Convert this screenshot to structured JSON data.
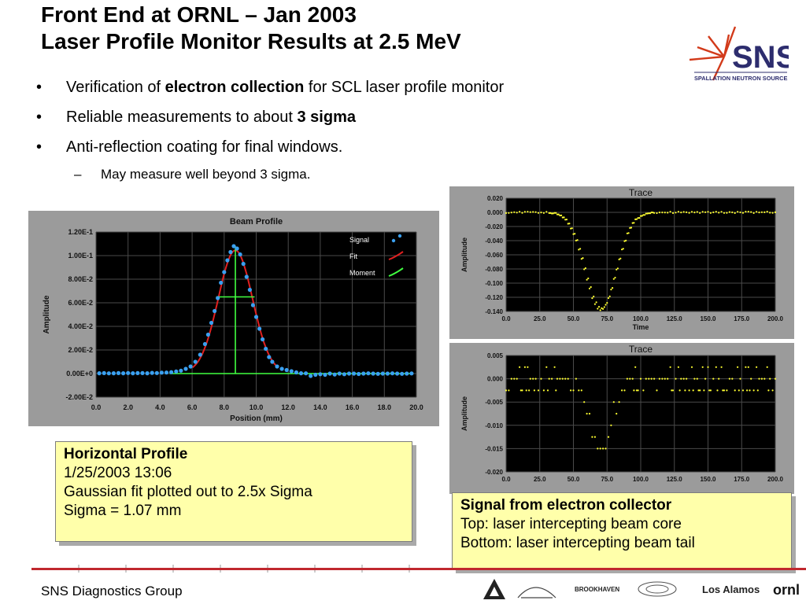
{
  "slide": {
    "title_line1": "Front End at ORNL – Jan 2003",
    "title_line2": "Laser Profile Monitor Results at 2.5 MeV",
    "bullets": [
      {
        "pre": "Verification of ",
        "bold": "electron collection",
        "post": " for SCL laser profile monitor"
      },
      {
        "pre": "Reliable measurements to about ",
        "bold": "3 sigma",
        "post": ""
      },
      {
        "pre": "Anti-reflection coating for final windows.",
        "bold": "",
        "post": ""
      }
    ],
    "sub_bullet_marker": "–",
    "sub_bullet": "May measure well beyond 3 sigma.",
    "bullet_marker": "•",
    "logo": {
      "letters": "SNS",
      "caption": "SPALLATION NEUTRON SOURCE"
    },
    "callout_left": {
      "head": "Horizontal Profile",
      "lines": [
        "1/25/2003 13:06",
        "Gaussian fit plotted out to 2.5x Sigma",
        "Sigma = 1.07 mm"
      ]
    },
    "callout_right": {
      "head": "Signal from electron collector",
      "lines": [
        "Top: laser intercepting beam core",
        "Bottom: laser intercepting beam tail"
      ]
    },
    "footer": "SNS Diagnostics Group",
    "sponsors": [
      "BROOKHAVEN",
      "Los Alamos",
      "ornl"
    ],
    "colors": {
      "accent_red": "#c0282e",
      "callout_fill": "#ffffaa",
      "plot_bg": "#000000",
      "signal": "#3aa0f0",
      "fit": "#e02020",
      "moment": "#40ff40",
      "trace_points": "#ffff30"
    }
  },
  "chart_data": [
    {
      "type": "scatter",
      "title": "Beam Profile",
      "xlabel": "Position (mm)",
      "ylabel": "Amplitude",
      "xlim": [
        0.0,
        20.0
      ],
      "ylim": [
        -0.02,
        0.12
      ],
      "xticks": [
        "0.0",
        "2.0",
        "4.0",
        "6.0",
        "8.0",
        "10.0",
        "12.0",
        "14.0",
        "16.0",
        "18.0",
        "20.0"
      ],
      "yticks": [
        "1.20E-1",
        "1.00E-1",
        "8.00E-2",
        "6.00E-2",
        "4.00E-2",
        "2.00E-2",
        "0.00E+0",
        "-2.00E-2"
      ],
      "legend": [
        "Signal",
        "Fit",
        "Moment"
      ],
      "legend_position": "top-right",
      "grid": true,
      "gaussian": {
        "center": 8.7,
        "sigma": 1.07,
        "amplitude": 0.104,
        "offset": 0.0005
      },
      "moment_crosshair": {
        "x": 8.7,
        "y": 0.065,
        "half_width": 1.2
      },
      "signal": {
        "x": [
          0.2,
          0.5,
          0.8,
          1.1,
          1.4,
          1.7,
          2.0,
          2.3,
          2.6,
          2.9,
          3.2,
          3.5,
          3.8,
          4.1,
          4.4,
          4.7,
          5.0,
          5.3,
          5.6,
          5.9,
          6.2,
          6.5,
          6.8,
          7.0,
          7.2,
          7.4,
          7.6,
          7.8,
          8.0,
          8.2,
          8.4,
          8.6,
          8.8,
          9.0,
          9.2,
          9.4,
          9.6,
          9.8,
          10.0,
          10.2,
          10.4,
          10.6,
          10.8,
          11.0,
          11.3,
          11.6,
          11.9,
          12.2,
          12.5,
          12.8,
          13.1,
          13.4,
          13.7,
          14.0,
          14.3,
          14.6,
          14.9,
          15.2,
          15.5,
          15.8,
          16.1,
          16.4,
          16.7,
          17.0,
          17.3,
          17.6,
          17.9,
          18.2,
          18.5,
          18.8,
          19.1,
          19.4,
          19.7
        ],
        "y": [
          0.0003,
          0.0004,
          0.0002,
          0.0003,
          0.0004,
          0.0003,
          0.0005,
          0.0003,
          0.0004,
          0.0004,
          0.0003,
          0.0006,
          0.0005,
          0.0008,
          0.0009,
          0.0012,
          0.0018,
          0.0025,
          0.004,
          0.006,
          0.01,
          0.016,
          0.025,
          0.033,
          0.043,
          0.053,
          0.064,
          0.077,
          0.086,
          0.096,
          0.103,
          0.108,
          0.106,
          0.101,
          0.093,
          0.082,
          0.071,
          0.058,
          0.048,
          0.038,
          0.029,
          0.021,
          0.014,
          0.01,
          0.006,
          0.004,
          0.003,
          0.002,
          0.001,
          0.0003,
          0.0002,
          -0.002,
          -0.001,
          -0.0005,
          -0.001,
          0.0,
          -0.0008,
          0.0,
          -0.0005,
          0.0,
          0.0,
          -0.0003,
          0.0,
          0.0002,
          0.0,
          -0.0002,
          0.0,
          0.0,
          0.0002,
          0.0,
          -0.0002,
          0.0,
          0.0001
        ]
      }
    },
    {
      "type": "scatter",
      "title": "Trace",
      "xlabel": "Time",
      "ylabel": "Amplitude",
      "xlim": [
        0.0,
        200.0
      ],
      "ylim": [
        -0.14,
        0.02
      ],
      "xticks": [
        "0.0",
        "25.0",
        "50.0",
        "75.0",
        "100.0",
        "125.0",
        "150.0",
        "175.0",
        "200.0"
      ],
      "yticks": [
        "0.020",
        "0.000",
        "-0.020",
        "-0.040",
        "-0.060",
        "-0.080",
        "-0.100",
        "-0.120",
        "-0.140"
      ],
      "grid": true,
      "dip": {
        "center": 70,
        "sigma": 11.5,
        "depth": -0.138
      }
    },
    {
      "type": "scatter",
      "title": "Trace",
      "xlabel": "",
      "ylabel": "Amplitude",
      "xlim": [
        0.0,
        200.0
      ],
      "ylim": [
        -0.02,
        0.005
      ],
      "xticks": [
        "0.0",
        "25.0",
        "50.0",
        "75.0",
        "100.0",
        "125.0",
        "150.0",
        "175.0",
        "200.0"
      ],
      "yticks": [
        "0.005",
        "0.000",
        "-0.005",
        "-0.010",
        "-0.015",
        "-0.020"
      ],
      "grid": true,
      "dip": {
        "center": 70,
        "sigma": 8,
        "depth": -0.015
      },
      "quantization_levels": [
        0.0025,
        0.0,
        -0.0025
      ]
    }
  ]
}
